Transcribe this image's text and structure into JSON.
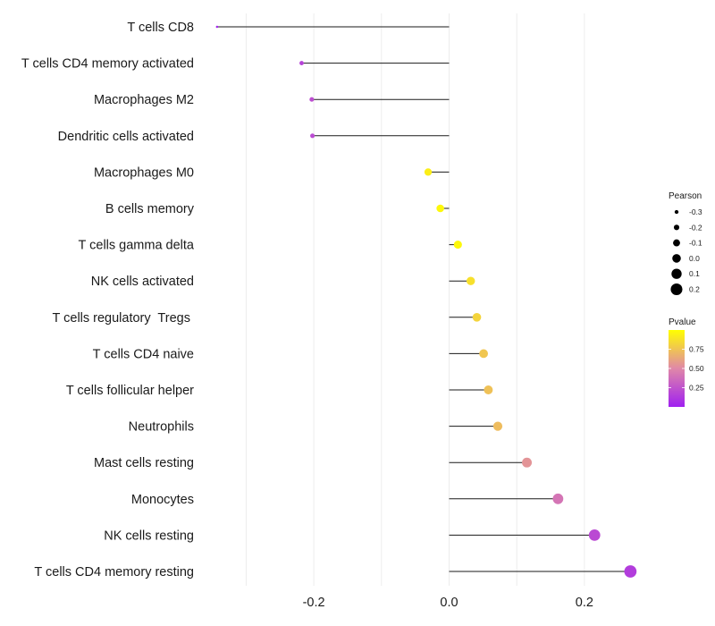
{
  "chart_data": {
    "type": "lollipop",
    "categories": [
      "T cells CD8",
      "T cells CD4 memory activated",
      "Macrophages M2",
      "Dendritic cells activated",
      "Macrophages M0",
      "B cells memory",
      "T cells gamma delta",
      "NK cells activated",
      "T cells regulatory  Tregs ",
      "T cells CD4 naive",
      "T cells follicular helper",
      "Neutrophils",
      "Mast cells resting",
      "Monocytes",
      "NK cells resting",
      "T cells CD4 memory resting"
    ],
    "values": [
      -0.343,
      -0.218,
      -0.203,
      -0.202,
      -0.031,
      -0.013,
      0.013,
      0.032,
      0.041,
      0.051,
      0.058,
      0.072,
      0.115,
      0.161,
      0.215,
      0.268
    ],
    "pvalues": [
      0.02,
      0.17,
      0.22,
      0.21,
      0.93,
      0.97,
      0.97,
      0.87,
      0.82,
      0.76,
      0.74,
      0.72,
      0.55,
      0.41,
      0.2,
      0.14
    ],
    "xlim": [
      -0.36,
      0.29
    ],
    "xticks": [
      -0.2,
      0.0,
      0.2
    ],
    "xtick_labels": [
      "-0.2",
      "0.0",
      "0.2"
    ],
    "xlabel": "",
    "ylabel": "",
    "grid": true,
    "legend": {
      "size_title": "Pearson",
      "size_values": [
        -0.3,
        -0.2,
        -0.1,
        0.0,
        0.1,
        0.2
      ],
      "size_labels": [
        "-0.3",
        "-0.2",
        "-0.1",
        "0.0",
        "0.1",
        "0.2"
      ],
      "color_title": "Pvalue",
      "color_values": [
        0.75,
        0.5,
        0.25
      ],
      "color_labels": [
        "0.75",
        "0.50",
        "0.25"
      ],
      "color_range": [
        0.0,
        1.0
      ],
      "color_low": "#a020f0",
      "color_high": "#ffff00",
      "placement": "right"
    }
  }
}
